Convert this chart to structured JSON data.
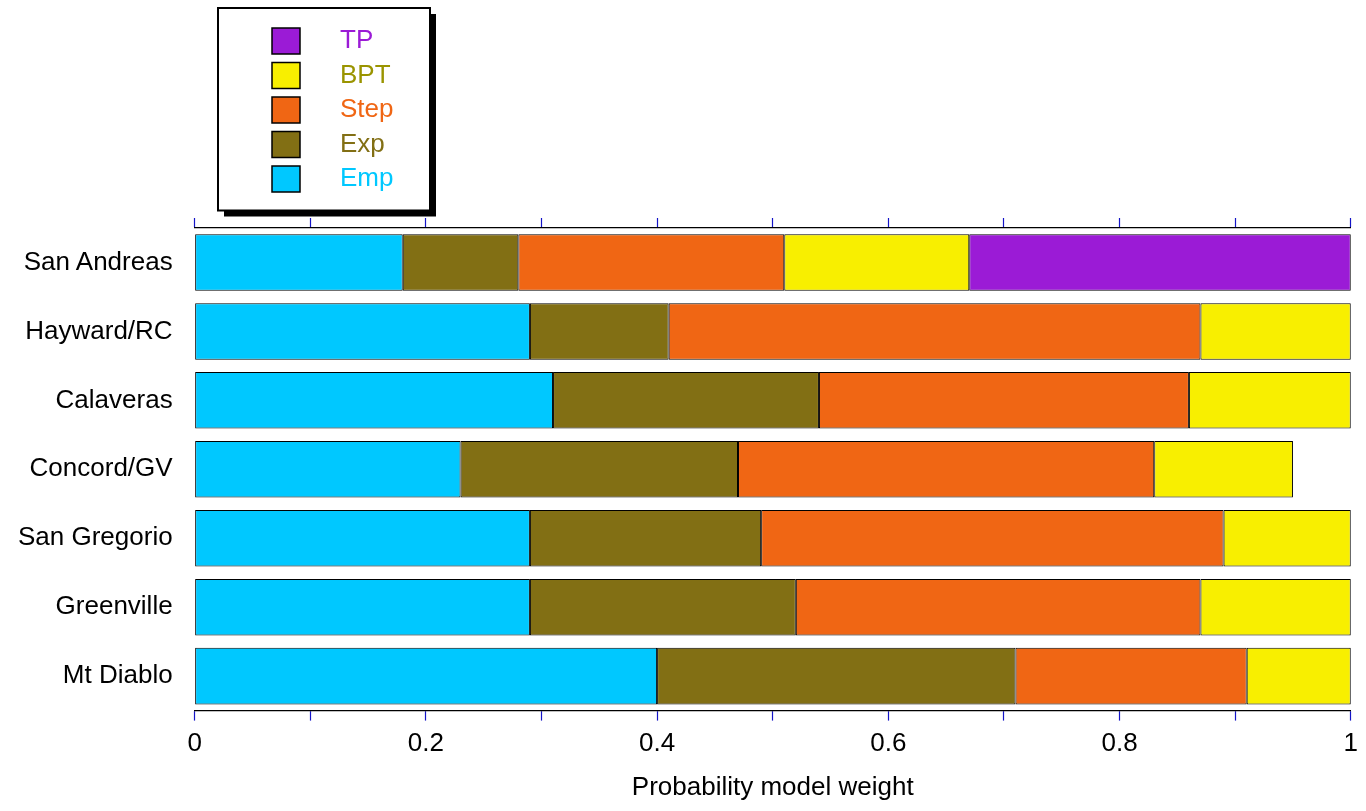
{
  "chart_data": {
    "type": "bar",
    "orientation": "horizontal",
    "stacked": true,
    "xlabel": "Probability model weight",
    "categories": [
      "San Andreas",
      "Hayward/RC",
      "Calaveras",
      "Concord/GV",
      "San Gregorio",
      "Greenville",
      "Mt Diablo"
    ],
    "series": [
      {
        "name": "Emp",
        "color": "#00c8ff",
        "values": [
          0.18,
          0.29,
          0.31,
          0.23,
          0.29,
          0.29,
          0.4
        ]
      },
      {
        "name": "Exp",
        "color": "#826f14",
        "values": [
          0.1,
          0.12,
          0.23,
          0.24,
          0.2,
          0.23,
          0.31
        ]
      },
      {
        "name": "Step",
        "color": "#f06614",
        "values": [
          0.23,
          0.46,
          0.32,
          0.36,
          0.4,
          0.35,
          0.2
        ]
      },
      {
        "name": "BPT",
        "color": "#f8ef00",
        "values": [
          0.16,
          0.13,
          0.14,
          0.12,
          0.11,
          0.13,
          0.09
        ]
      },
      {
        "name": "TP",
        "color": "#9b1bd6",
        "values": [
          0.33,
          0,
          0,
          0,
          0,
          0,
          0
        ]
      }
    ],
    "xlim": [
      0,
      1
    ],
    "xticks": [
      0,
      {
        "value": 0.1,
        "label": null
      },
      0.2,
      {
        "value": 0.3,
        "label": null
      },
      0.4,
      {
        "value": 0.5,
        "label": null
      },
      0.6,
      {
        "value": 0.7,
        "label": null
      },
      0.8,
      {
        "value": 0.9,
        "label": null
      },
      1
    ],
    "grid": false,
    "legend": "top left"
  }
}
